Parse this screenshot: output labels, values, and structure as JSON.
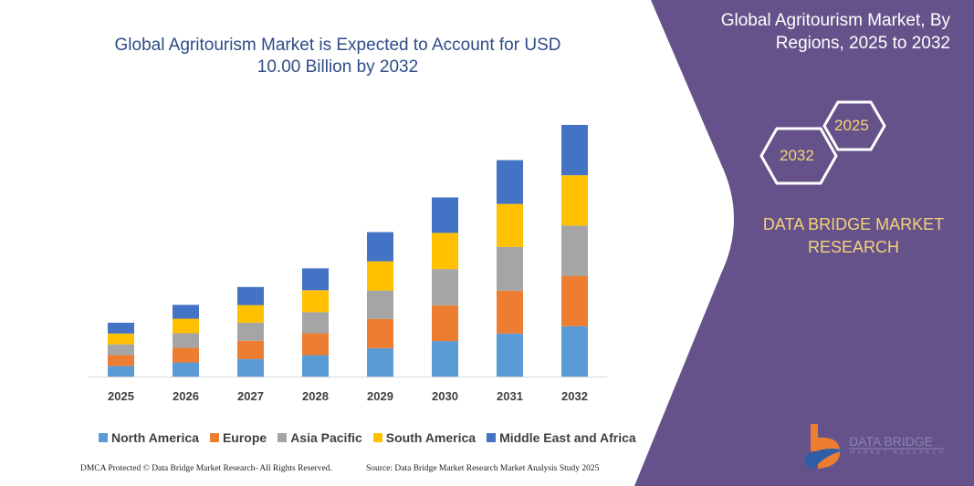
{
  "title": "Global Agritourism Market is Expected to Account for USD 10.00 Billion by 2032",
  "side_panel": {
    "title": "Global Agritourism Market, By Regions, 2025 to 2032",
    "hex_years": [
      "2025",
      "2032"
    ],
    "brand": "DATA BRIDGE MARKET RESEARCH",
    "logo_text": "DATA BRIDGE",
    "logo_sub": "MARKET RESEARCH",
    "background_color": "#65528a",
    "accent_color": "#f5d27a"
  },
  "footer": {
    "left": "DMCA Protected © Data Bridge Market Research- All Rights Reserved.",
    "right": "Source: Data Bridge Market Research Market Analysis Study 2025"
  },
  "chart_data": {
    "type": "bar",
    "stacked": true,
    "title": "Global Agritourism Market is Expected to Account for USD 10.00 Billion by 2032",
    "categories": [
      "2025",
      "2026",
      "2027",
      "2028",
      "2029",
      "2030",
      "2031",
      "2032"
    ],
    "series": [
      {
        "name": "North America",
        "color": "#5b9bd5",
        "values": [
          0.42,
          0.56,
          0.7,
          0.85,
          1.13,
          1.41,
          1.71,
          2.0
        ]
      },
      {
        "name": "Europe",
        "color": "#ed7d31",
        "values": [
          0.43,
          0.58,
          0.72,
          0.87,
          1.16,
          1.42,
          1.7,
          2.0
        ]
      },
      {
        "name": "Asia Pacific",
        "color": "#a5a5a5",
        "values": [
          0.43,
          0.58,
          0.72,
          0.84,
          1.13,
          1.44,
          1.74,
          2.0
        ]
      },
      {
        "name": "South America",
        "color": "#ffc000",
        "values": [
          0.43,
          0.58,
          0.7,
          0.87,
          1.16,
          1.44,
          1.71,
          2.0
        ]
      },
      {
        "name": "Middle East and Africa",
        "color": "#4472c4",
        "values": [
          0.43,
          0.55,
          0.72,
          0.87,
          1.16,
          1.41,
          1.74,
          2.0
        ]
      }
    ],
    "ylim": [
      0,
      10
    ],
    "y_axis_visible": false,
    "grid": false,
    "legend": "bottom",
    "unit": "USD Billion"
  }
}
